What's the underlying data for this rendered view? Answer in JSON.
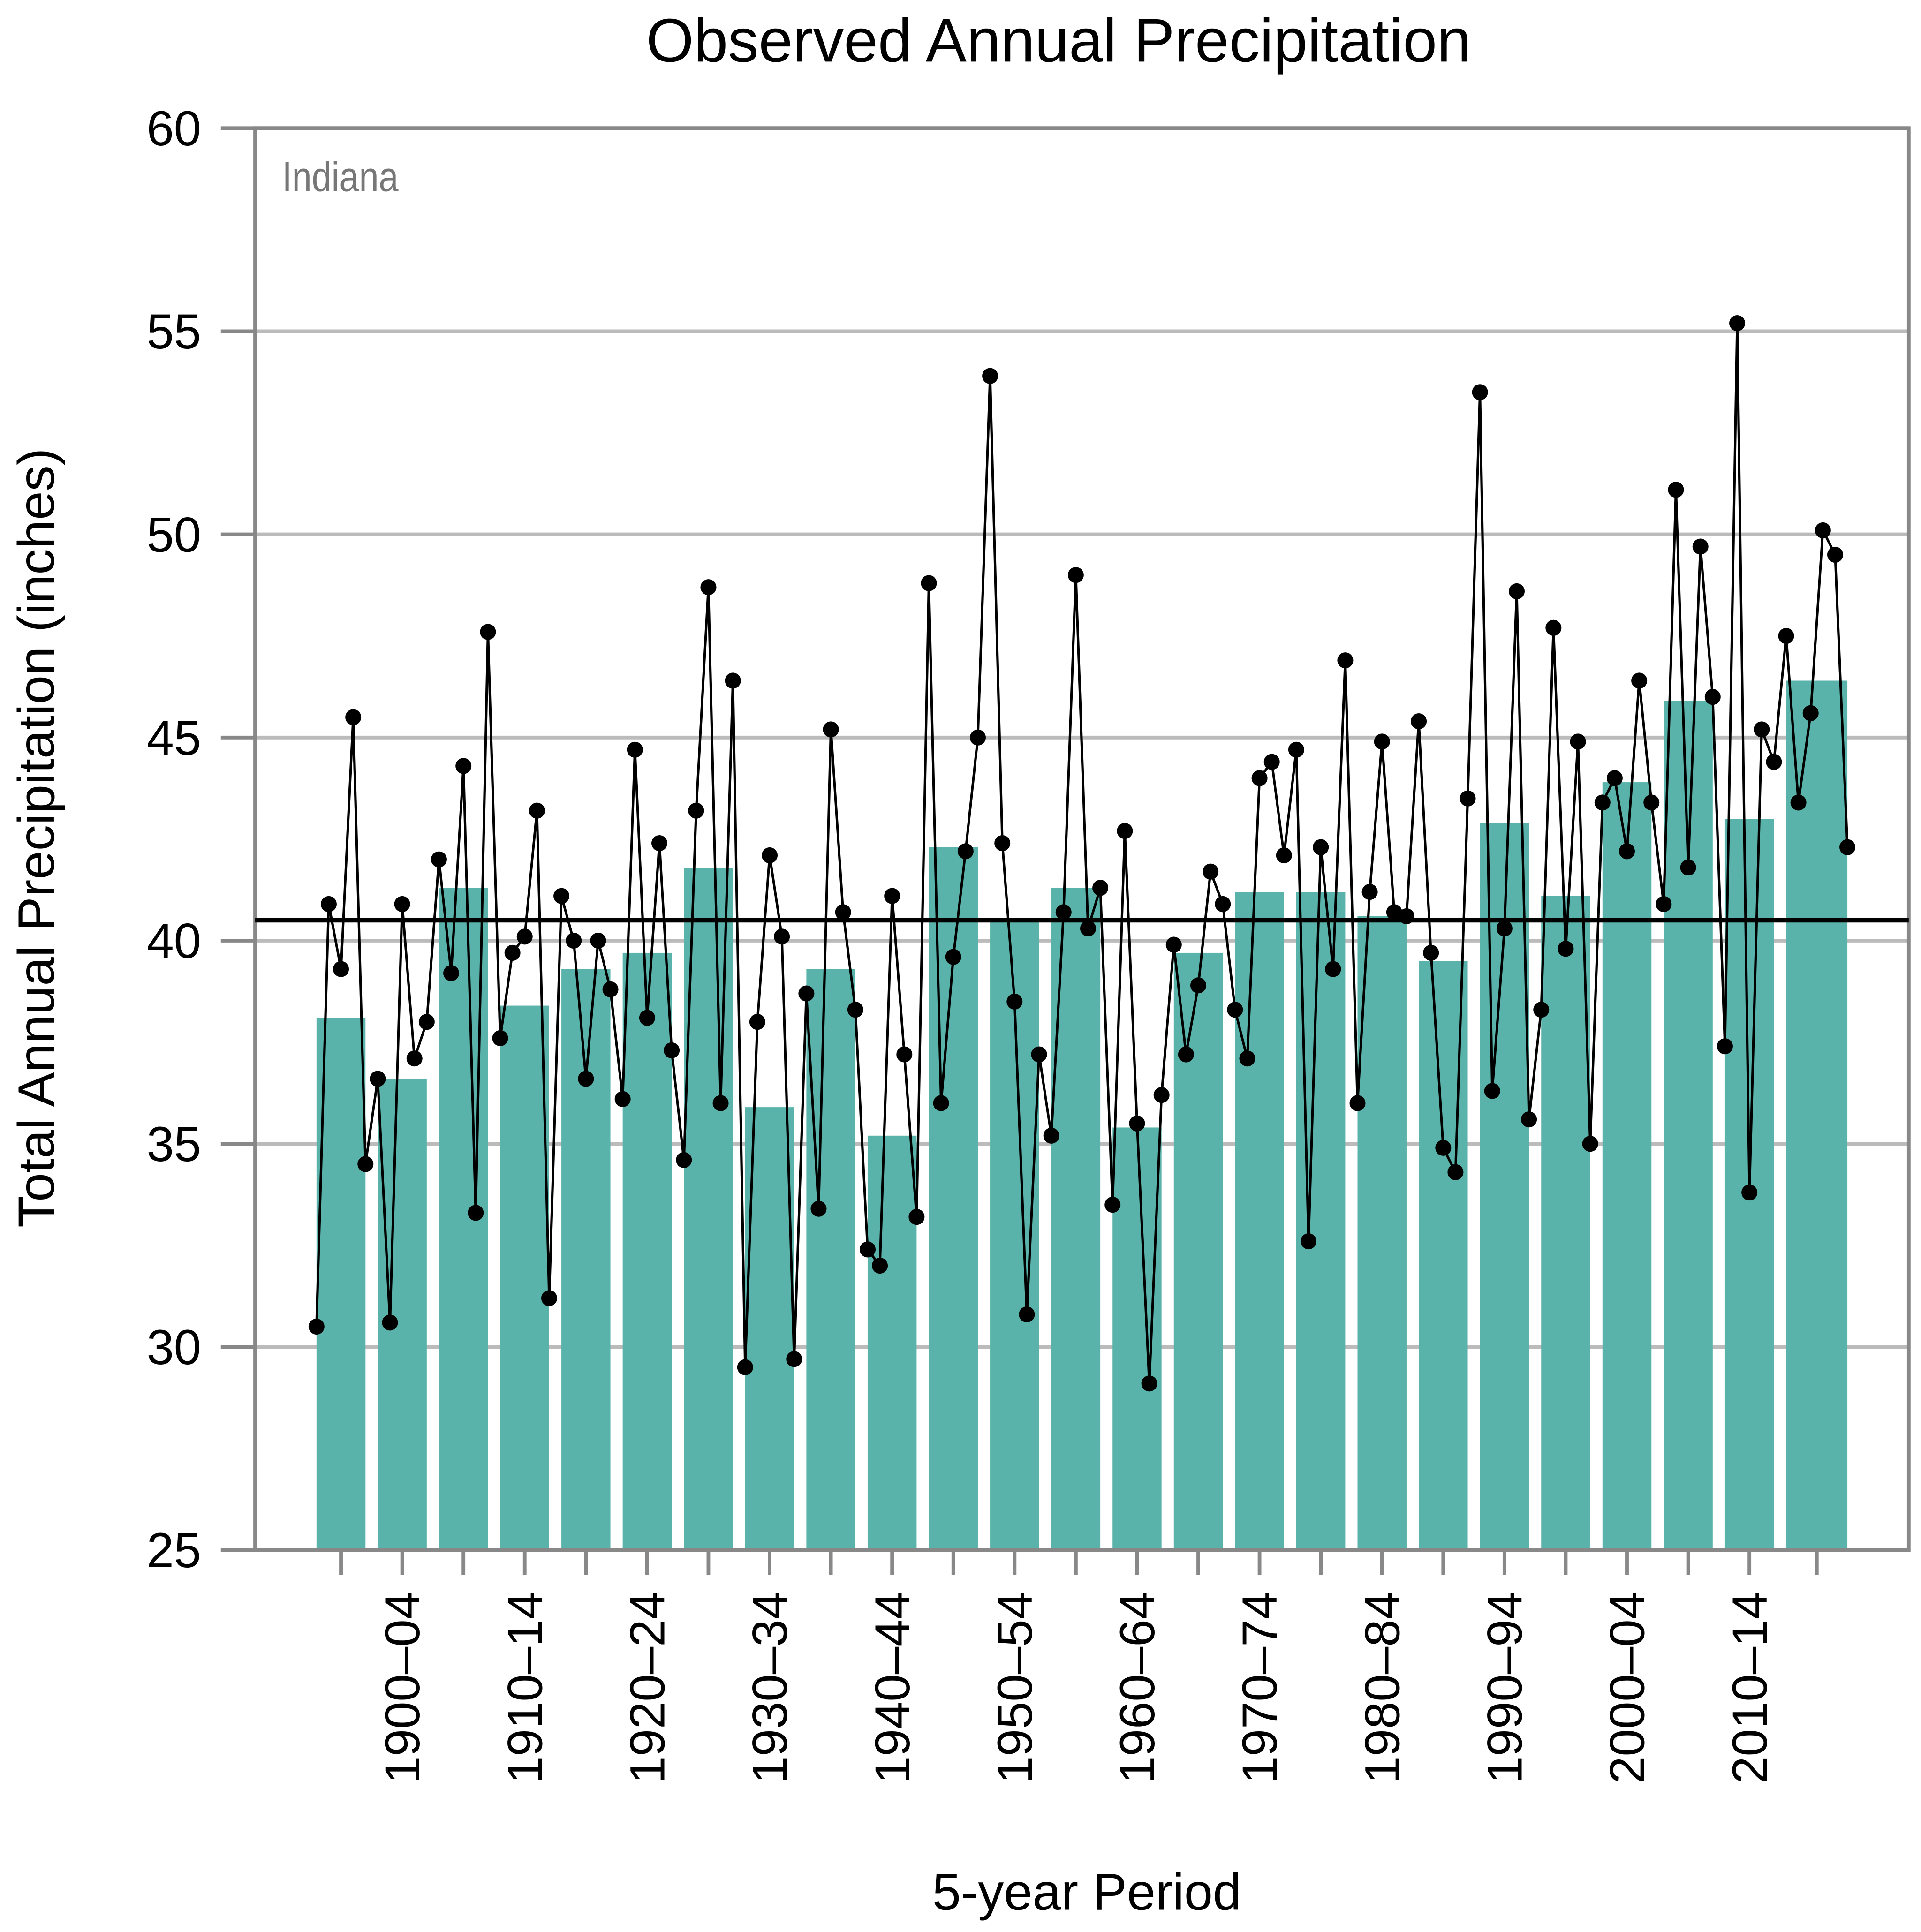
{
  "chart_data": {
    "type": "bar",
    "title": "Observed Annual Precipitation",
    "annotation": "Indiana",
    "x_label": "5-year Period",
    "y_label": "Total Annual Precipitation (inches)",
    "categories": [
      null,
      "1900–04",
      null,
      "1910–14",
      null,
      "1920–24",
      null,
      "1930–34",
      null,
      "1940–44",
      null,
      "1950–54",
      null,
      "1960–64",
      null,
      "1970–74",
      null,
      "1980–84",
      null,
      "1990–94",
      null,
      "2000–04",
      null,
      "2010–14",
      null
    ],
    "values": [
      38.1,
      36.6,
      41.3,
      38.4,
      39.3,
      39.7,
      41.8,
      35.9,
      39.3,
      35.2,
      42.3,
      40.5,
      41.3,
      35.4,
      39.7,
      41.2,
      41.2,
      40.6,
      39.5,
      42.9,
      41.1,
      43.9,
      45.9,
      43.0,
      46.4
    ],
    "color": "#5ab3aa",
    "annual_values": [
      30.5,
      40.9,
      39.3,
      45.5,
      34.5,
      36.6,
      30.6,
      40.9,
      37.1,
      38.0,
      42.0,
      39.2,
      44.3,
      33.3,
      47.6,
      37.6,
      39.7,
      40.1,
      43.2,
      31.2,
      41.1,
      40.0,
      36.6,
      40.0,
      38.8,
      36.1,
      44.7,
      38.1,
      42.4,
      37.3,
      34.6,
      43.2,
      48.7,
      36.0,
      46.4,
      29.5,
      38.0,
      42.1,
      40.1,
      29.7,
      38.7,
      33.4,
      45.2,
      40.7,
      38.3,
      32.4,
      32.0,
      41.1,
      37.2,
      33.2,
      48.8,
      36.0,
      39.6,
      42.2,
      45.0,
      53.9,
      42.4,
      38.5,
      30.8,
      37.2,
      35.2,
      40.7,
      49.0,
      40.3,
      41.3,
      33.5,
      42.7,
      35.5,
      29.1,
      36.2,
      39.9,
      37.2,
      38.9,
      41.7,
      40.9,
      38.3,
      37.1,
      44.0,
      44.4,
      42.1,
      44.7,
      32.6,
      42.3,
      39.3,
      46.9,
      36.0,
      41.2,
      44.9,
      40.7,
      40.6,
      45.4,
      39.7,
      34.9,
      34.3,
      43.5,
      53.5,
      36.3,
      40.3,
      48.6,
      35.6,
      38.3,
      47.7,
      39.8,
      44.9,
      35.0,
      43.4,
      44.0,
      42.2,
      46.4,
      43.4,
      40.9,
      51.1,
      41.8,
      49.7,
      46.0,
      37.4,
      55.2,
      33.8,
      45.2,
      44.4,
      47.5,
      43.4,
      45.6,
      50.1,
      49.5,
      42.3
    ],
    "annual_color": "#000000",
    "mean_line": 40.5,
    "ylim": [
      25,
      60
    ],
    "yticks": [
      25,
      30,
      35,
      40,
      45,
      50,
      55,
      60
    ],
    "grid": true
  }
}
